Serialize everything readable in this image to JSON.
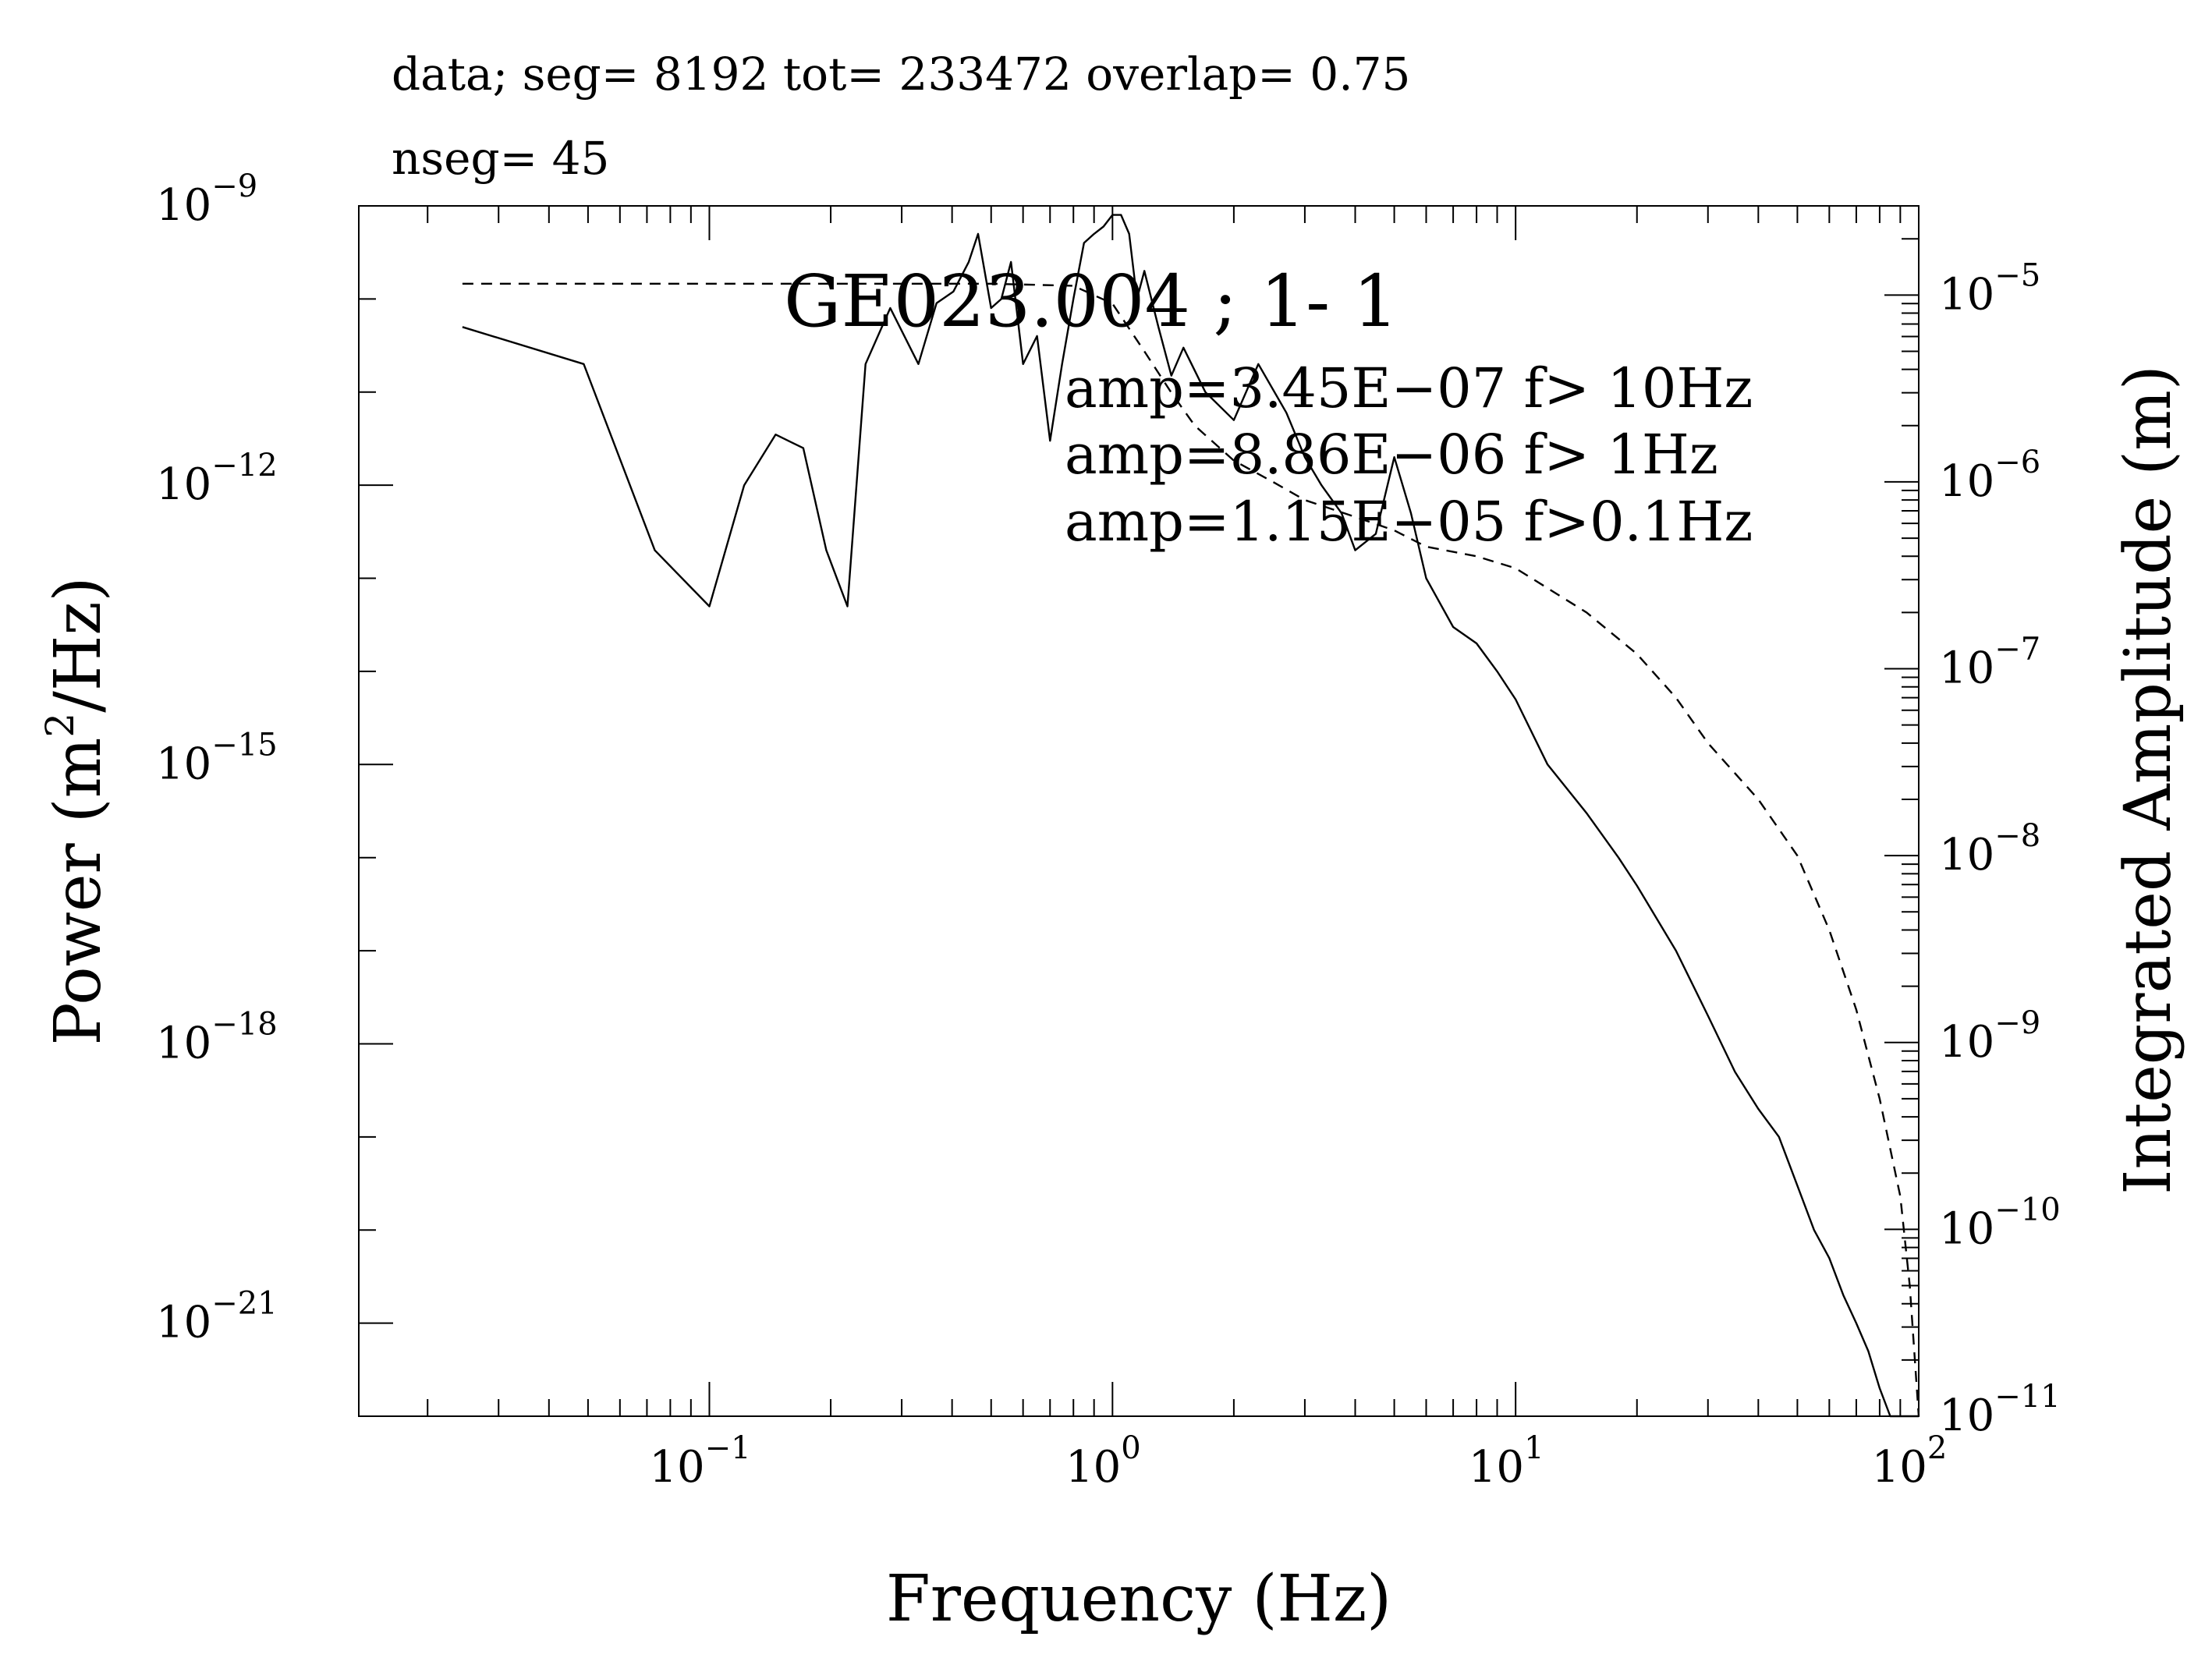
{
  "header": {
    "line1": "data; seg= 8192 tot= 233472 overlap=  0.75",
    "line2": "nseg= 45"
  },
  "chart_data": {
    "type": "line",
    "title": "GE023.004 ; 1- 1",
    "xlabel": "Frequency (Hz)",
    "ylabel_left_prefix": "Power (m",
    "ylabel_left_sup": "2",
    "ylabel_left_suffix": "/Hz)",
    "ylabel_right": "Integrated Amplitude (m)",
    "x_scale": "log",
    "y_left_scale": "log",
    "y_right_scale": "log",
    "xlim": [
      0.0135,
      100
    ],
    "ylim_left": [
      1e-22,
      1e-09
    ],
    "ylim_right": [
      1e-11,
      3e-05
    ],
    "x_ticks": [
      {
        "value": 0.1,
        "base": "10",
        "exp": "−1"
      },
      {
        "value": 1,
        "base": "10",
        "exp": "0"
      },
      {
        "value": 10,
        "base": "10",
        "exp": "1"
      },
      {
        "value": 100,
        "base": "10",
        "exp": "2"
      }
    ],
    "y_left_ticks": [
      {
        "value": 1e-09,
        "base": "10",
        "exp": "−9"
      },
      {
        "value": 1e-12,
        "base": "10",
        "exp": "−12"
      },
      {
        "value": 1e-15,
        "base": "10",
        "exp": "−15"
      },
      {
        "value": 1e-18,
        "base": "10",
        "exp": "−18"
      },
      {
        "value": 1e-21,
        "base": "10",
        "exp": "−21"
      }
    ],
    "y_right_ticks": [
      {
        "value": 1e-05,
        "base": "10",
        "exp": "−5"
      },
      {
        "value": 1e-06,
        "base": "10",
        "exp": "−6"
      },
      {
        "value": 1e-07,
        "base": "10",
        "exp": "−7"
      },
      {
        "value": 1e-08,
        "base": "10",
        "exp": "−8"
      },
      {
        "value": 1e-09,
        "base": "10",
        "exp": "−9"
      },
      {
        "value": 1e-10,
        "base": "10",
        "exp": "−10"
      },
      {
        "value": 1e-11,
        "base": "10",
        "exp": "−11"
      }
    ],
    "annotations": [
      "amp=3.45E−07 f> 10Hz",
      "amp=8.86E−06 f>  1Hz",
      "amp=1.15E−05 f>0.1Hz"
    ],
    "series": [
      {
        "style": "solid",
        "axis": "left",
        "x": [
          0.0244,
          0.0488,
          0.0732,
          0.1,
          0.122,
          0.146,
          0.171,
          0.195,
          0.22,
          0.244,
          0.281,
          0.33,
          0.366,
          0.403,
          0.44,
          0.464,
          0.5,
          0.53,
          0.56,
          0.6,
          0.65,
          0.7,
          0.75,
          0.8,
          0.85,
          0.9,
          0.95,
          1.0,
          1.05,
          1.1,
          1.15,
          1.2,
          1.3,
          1.4,
          1.5,
          1.7,
          2.0,
          2.3,
          2.7,
          3.0,
          3.3,
          3.7,
          4.0,
          4.5,
          5.0,
          5.5,
          6.0,
          7.0,
          8.0,
          9.0,
          10,
          12,
          15,
          18,
          20,
          25,
          30,
          35,
          40,
          45,
          50,
          55,
          60,
          65,
          70,
          75,
          80,
          85,
          90,
          95,
          100
        ],
        "y": [
          5e-11,
          2e-11,
          2e-13,
          5e-14,
          1e-12,
          3.5e-12,
          2.5e-12,
          2e-13,
          5e-14,
          2e-11,
          8e-11,
          2e-11,
          9e-11,
          1.2e-10,
          2.5e-10,
          5e-10,
          8e-11,
          1e-10,
          2.5e-10,
          2e-11,
          4e-11,
          3e-12,
          2e-11,
          1e-10,
          4e-10,
          5e-10,
          6e-10,
          8e-10,
          8e-10,
          5e-10,
          1e-10,
          2e-10,
          5e-11,
          1.5e-11,
          3e-11,
          1e-11,
          5e-12,
          2e-11,
          6e-12,
          2e-12,
          1e-12,
          5e-13,
          2e-13,
          3e-13,
          2e-12,
          5e-13,
          1e-13,
          3e-14,
          2e-14,
          1e-14,
          5e-15,
          1e-15,
          3e-16,
          1e-16,
          5e-17,
          1e-17,
          2e-18,
          5e-19,
          2e-19,
          1e-19,
          3e-20,
          1e-20,
          5e-21,
          2e-21,
          1e-21,
          5e-22,
          2e-22,
          1e-22,
          1e-22,
          1e-22,
          1e-22
        ]
      },
      {
        "style": "dashed",
        "axis": "right",
        "x": [
          0.0244,
          0.1,
          0.5,
          0.8,
          1.0,
          1.2,
          1.4,
          1.6,
          2.0,
          2.5,
          3.0,
          4.0,
          5.0,
          6.0,
          8.0,
          10,
          15,
          20,
          25,
          30,
          40,
          50,
          60,
          70,
          80,
          90,
          95,
          100
        ],
        "y": [
          1.15e-05,
          1.15e-05,
          1.15e-05,
          1.12e-05,
          9e-06,
          5e-06,
          3e-06,
          2e-06,
          1.3e-06,
          1e-06,
          8e-07,
          6.5e-07,
          5.5e-07,
          4.5e-07,
          4e-07,
          3.45e-07,
          2e-07,
          1.2e-07,
          7e-08,
          4e-08,
          2e-08,
          1e-08,
          4e-09,
          1.5e-09,
          5e-10,
          1.5e-10,
          5e-11,
          1e-11
        ]
      }
    ]
  }
}
